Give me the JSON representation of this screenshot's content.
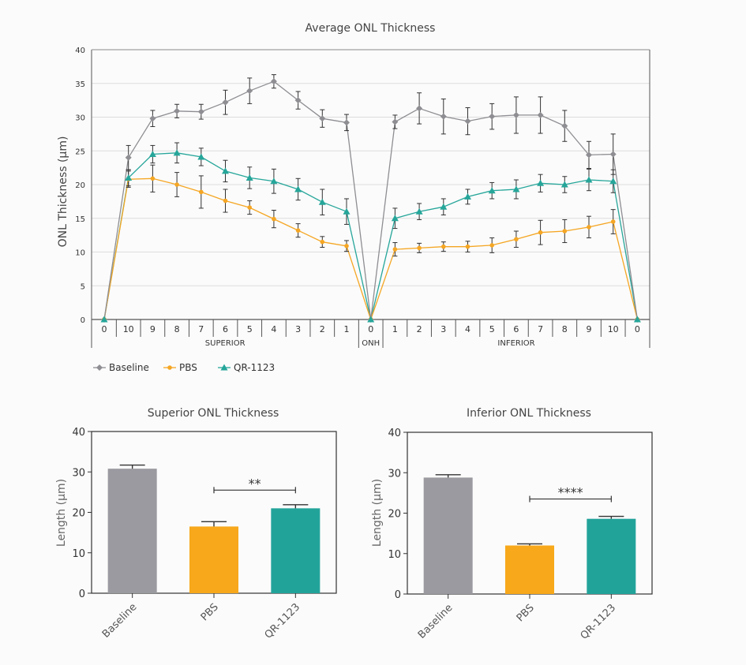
{
  "colors": {
    "baseline": "#8e8e93",
    "pbs": "#f5a623",
    "qr": "#26a69a",
    "bar_baseline": "#9a9aa0",
    "bar_pbs": "#f7a81b",
    "bar_qr": "#22a39a",
    "axis": "#555555",
    "grid": "#dddddd"
  },
  "chart_data": [
    {
      "type": "line",
      "title": "Average ONL Thickness",
      "ylabel": "ONL Thickness (µm)",
      "ylim": [
        0,
        40
      ],
      "yticks": [
        "0",
        "5",
        "10",
        "15",
        "20",
        "25",
        "30",
        "35",
        "40"
      ],
      "grid": true,
      "categories": [
        "0",
        "10",
        "9",
        "8",
        "7",
        "6",
        "5",
        "4",
        "3",
        "2",
        "1",
        "0",
        "1",
        "2",
        "3",
        "4",
        "5",
        "6",
        "7",
        "8",
        "9",
        "10",
        "0"
      ],
      "groups": [
        {
          "label": "SUPERIOR",
          "from": 0,
          "to": 10
        },
        {
          "label": "ONH",
          "from": 11,
          "to": 11
        },
        {
          "label": "INFERIOR",
          "from": 12,
          "to": 22
        }
      ],
      "series": [
        {
          "name": "Baseline",
          "values": [
            0,
            24.0,
            29.8,
            30.9,
            30.8,
            32.2,
            33.9,
            35.3,
            32.5,
            29.8,
            29.2,
            0,
            29.3,
            31.3,
            30.1,
            29.4,
            30.1,
            30.3,
            30.3,
            28.7,
            24.4,
            24.5,
            0
          ],
          "errors": [
            0,
            1.8,
            1.2,
            1.0,
            1.1,
            1.8,
            1.9,
            1.0,
            1.3,
            1.3,
            1.2,
            0,
            1.0,
            2.3,
            2.6,
            2.0,
            1.9,
            2.7,
            2.7,
            2.3,
            2.0,
            3.0,
            0
          ]
        },
        {
          "name": "PBS",
          "values": [
            0,
            20.8,
            20.9,
            20.0,
            18.9,
            17.6,
            16.6,
            14.9,
            13.2,
            11.5,
            10.9,
            0,
            10.4,
            10.6,
            10.8,
            10.8,
            11.0,
            11.9,
            12.9,
            13.1,
            13.7,
            14.5,
            0
          ],
          "errors": [
            0,
            1.2,
            2.0,
            1.8,
            2.4,
            1.7,
            1.0,
            1.3,
            1.0,
            0.8,
            0.8,
            0,
            1.0,
            0.7,
            0.7,
            0.8,
            1.1,
            1.2,
            1.8,
            1.7,
            1.6,
            1.8,
            0
          ]
        },
        {
          "name": "QR-1123",
          "values": [
            0,
            21.0,
            24.5,
            24.7,
            24.1,
            22.0,
            21.0,
            20.5,
            19.3,
            17.4,
            16.0,
            0,
            15.0,
            16.0,
            16.7,
            18.2,
            19.1,
            19.3,
            20.2,
            20.0,
            20.7,
            20.5,
            0
          ],
          "errors": [
            0,
            1.2,
            1.3,
            1.5,
            1.3,
            1.6,
            1.6,
            1.8,
            1.6,
            1.9,
            1.9,
            0,
            1.5,
            1.2,
            1.2,
            1.1,
            1.2,
            1.4,
            1.3,
            1.2,
            1.6,
            1.7,
            0
          ]
        }
      ],
      "legend": [
        "Baseline",
        "PBS",
        "QR-1123"
      ],
      "legend_position": "bottom-left"
    },
    {
      "type": "bar",
      "title": "Superior ONL Thickness",
      "ylabel": "Length (µm)",
      "ylim": [
        0,
        40
      ],
      "yticks": [
        "0",
        "10",
        "20",
        "30",
        "40"
      ],
      "categories": [
        "Baseline",
        "PBS",
        "QR-1123"
      ],
      "values": [
        30.8,
        16.5,
        21.0
      ],
      "errors": [
        0.9,
        1.2,
        0.9
      ],
      "annotation": {
        "text": "**",
        "from": 1,
        "to": 2,
        "level": 25.5
      }
    },
    {
      "type": "bar",
      "title": "Inferior ONL Thickness",
      "ylabel": "Length (µm)",
      "ylim": [
        0,
        40
      ],
      "yticks": [
        "0",
        "10",
        "20",
        "30",
        "40"
      ],
      "categories": [
        "Baseline",
        "PBS",
        "QR-1123"
      ],
      "values": [
        28.8,
        12.0,
        18.6
      ],
      "errors": [
        0.7,
        0.4,
        0.6
      ],
      "annotation": {
        "text": "****",
        "from": 1,
        "to": 2,
        "level": 23.5
      }
    }
  ]
}
